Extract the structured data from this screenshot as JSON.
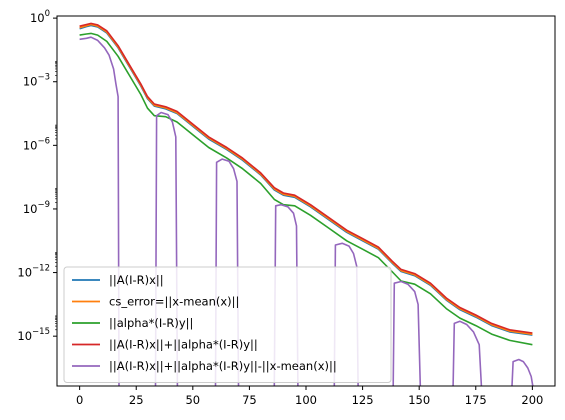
{
  "chart_data": {
    "type": "line",
    "title": "",
    "xlabel": "",
    "ylabel": "",
    "yscale": "log",
    "xlim": [
      -10,
      210
    ],
    "ylim": [
      -17.35,
      0.1
    ],
    "x_ticks": [
      0,
      25,
      50,
      75,
      100,
      125,
      150,
      175,
      200
    ],
    "y_ticks": [
      {
        "exp": 0,
        "label": "10",
        "sup": "0"
      },
      {
        "exp": -3,
        "label": "10",
        "sup": "−3"
      },
      {
        "exp": -6,
        "label": "10",
        "sup": "−6"
      },
      {
        "exp": -9,
        "label": "10",
        "sup": "−9"
      },
      {
        "exp": -12,
        "label": "10",
        "sup": "−12"
      },
      {
        "exp": -15,
        "label": "10",
        "sup": "−15"
      }
    ],
    "legend_position": "lower left",
    "grid": false,
    "colors": {
      "blue": "#1f77b4",
      "orange": "#ff7f0e",
      "green": "#2ca02c",
      "red": "#d62728",
      "purple": "#9467bd"
    },
    "series": [
      {
        "name": "||A(I-R)x||",
        "color": "#1f77b4",
        "points": [
          [
            0,
            -0.5
          ],
          [
            3,
            -0.4
          ],
          [
            5,
            -0.35
          ],
          [
            8,
            -0.42
          ],
          [
            12,
            -0.7
          ],
          [
            17,
            -1.4
          ],
          [
            22,
            -2.3
          ],
          [
            27,
            -3.2
          ],
          [
            30,
            -3.8
          ],
          [
            33,
            -4.15
          ],
          [
            38,
            -4.28
          ],
          [
            43,
            -4.5
          ],
          [
            50,
            -5.1
          ],
          [
            57,
            -5.7
          ],
          [
            65,
            -6.2
          ],
          [
            72,
            -6.7
          ],
          [
            80,
            -7.4
          ],
          [
            86,
            -8.1
          ],
          [
            90,
            -8.35
          ],
          [
            95,
            -8.45
          ],
          [
            102,
            -8.9
          ],
          [
            110,
            -9.5
          ],
          [
            118,
            -10.1
          ],
          [
            125,
            -10.5
          ],
          [
            132,
            -10.9
          ],
          [
            138,
            -11.55
          ],
          [
            142,
            -11.95
          ],
          [
            148,
            -12.15
          ],
          [
            155,
            -12.6
          ],
          [
            162,
            -13.3
          ],
          [
            168,
            -13.75
          ],
          [
            175,
            -14.1
          ],
          [
            182,
            -14.5
          ],
          [
            190,
            -14.8
          ],
          [
            200,
            -14.95
          ]
        ]
      },
      {
        "name": "cs_error=||x-mean(x)||",
        "color": "#ff7f0e",
        "points": [
          [
            0,
            -0.45
          ],
          [
            3,
            -0.36
          ],
          [
            5,
            -0.3
          ],
          [
            8,
            -0.38
          ],
          [
            12,
            -0.66
          ],
          [
            17,
            -1.36
          ],
          [
            22,
            -2.26
          ],
          [
            27,
            -3.16
          ],
          [
            30,
            -3.76
          ],
          [
            33,
            -4.11
          ],
          [
            38,
            -4.24
          ],
          [
            43,
            -4.46
          ],
          [
            50,
            -5.06
          ],
          [
            57,
            -5.66
          ],
          [
            65,
            -6.16
          ],
          [
            72,
            -6.66
          ],
          [
            80,
            -7.36
          ],
          [
            86,
            -8.06
          ],
          [
            90,
            -8.31
          ],
          [
            95,
            -8.41
          ],
          [
            102,
            -8.86
          ],
          [
            110,
            -9.46
          ],
          [
            118,
            -10.06
          ],
          [
            125,
            -10.46
          ],
          [
            132,
            -10.86
          ],
          [
            138,
            -11.51
          ],
          [
            142,
            -11.91
          ],
          [
            148,
            -12.11
          ],
          [
            155,
            -12.56
          ],
          [
            162,
            -13.26
          ],
          [
            168,
            -13.71
          ],
          [
            175,
            -14.06
          ],
          [
            182,
            -14.46
          ],
          [
            190,
            -14.76
          ],
          [
            200,
            -14.91
          ]
        ]
      },
      {
        "name": "||alpha*(I-R)y||",
        "color": "#2ca02c",
        "points": [
          [
            0,
            -0.8
          ],
          [
            3,
            -0.75
          ],
          [
            5,
            -0.72
          ],
          [
            8,
            -0.8
          ],
          [
            12,
            -1.1
          ],
          [
            17,
            -1.8
          ],
          [
            22,
            -2.7
          ],
          [
            27,
            -3.6
          ],
          [
            30,
            -4.25
          ],
          [
            33,
            -4.6
          ],
          [
            38,
            -4.65
          ],
          [
            43,
            -4.9
          ],
          [
            50,
            -5.5
          ],
          [
            57,
            -6.1
          ],
          [
            65,
            -6.6
          ],
          [
            72,
            -7.1
          ],
          [
            80,
            -7.8
          ],
          [
            86,
            -8.55
          ],
          [
            90,
            -8.8
          ],
          [
            95,
            -8.85
          ],
          [
            102,
            -9.3
          ],
          [
            110,
            -9.9
          ],
          [
            118,
            -10.5
          ],
          [
            125,
            -10.9
          ],
          [
            132,
            -11.3
          ],
          [
            138,
            -11.95
          ],
          [
            142,
            -12.4
          ],
          [
            148,
            -12.55
          ],
          [
            155,
            -13.0
          ],
          [
            162,
            -13.7
          ],
          [
            168,
            -14.15
          ],
          [
            175,
            -14.5
          ],
          [
            182,
            -14.9
          ],
          [
            190,
            -15.2
          ],
          [
            200,
            -15.4
          ]
        ]
      },
      {
        "name": "||A(I-R)x||+||alpha*(I-R)y||",
        "color": "#d62728",
        "points": [
          [
            0,
            -0.38
          ],
          [
            3,
            -0.3
          ],
          [
            5,
            -0.25
          ],
          [
            8,
            -0.32
          ],
          [
            12,
            -0.6
          ],
          [
            17,
            -1.3
          ],
          [
            22,
            -2.2
          ],
          [
            27,
            -3.1
          ],
          [
            30,
            -3.7
          ],
          [
            33,
            -4.05
          ],
          [
            38,
            -4.18
          ],
          [
            43,
            -4.4
          ],
          [
            50,
            -5.0
          ],
          [
            57,
            -5.6
          ],
          [
            65,
            -6.1
          ],
          [
            72,
            -6.6
          ],
          [
            80,
            -7.3
          ],
          [
            86,
            -8.0
          ],
          [
            90,
            -8.25
          ],
          [
            95,
            -8.35
          ],
          [
            102,
            -8.8
          ],
          [
            110,
            -9.4
          ],
          [
            118,
            -10.0
          ],
          [
            125,
            -10.4
          ],
          [
            132,
            -10.8
          ],
          [
            138,
            -11.45
          ],
          [
            142,
            -11.85
          ],
          [
            148,
            -12.05
          ],
          [
            155,
            -12.5
          ],
          [
            162,
            -13.2
          ],
          [
            168,
            -13.65
          ],
          [
            175,
            -14.0
          ],
          [
            182,
            -14.4
          ],
          [
            190,
            -14.7
          ],
          [
            200,
            -14.85
          ]
        ]
      },
      {
        "name": "||A(I-R)x||+||alpha*(I-R)y||-||x-mean(x)||",
        "color": "#9467bd",
        "segments": [
          [
            [
              0,
              -1.0
            ],
            [
              3,
              -0.95
            ],
            [
              5,
              -0.9
            ],
            [
              8,
              -1.05
            ],
            [
              11,
              -1.4
            ],
            [
              13,
              -1.75
            ],
            [
              15,
              -2.4
            ],
            [
              16,
              -3.1
            ],
            [
              17,
              -3.7
            ],
            [
              17.4,
              -17.35
            ]
          ],
          [
            [
              33.5,
              -17.35
            ],
            [
              34,
              -4.6
            ],
            [
              36,
              -4.45
            ],
            [
              39,
              -4.55
            ],
            [
              41,
              -4.9
            ],
            [
              42.5,
              -5.6
            ],
            [
              43.2,
              -17.35
            ]
          ],
          [
            [
              60,
              -17.35
            ],
            [
              60.5,
              -6.8
            ],
            [
              63,
              -6.65
            ],
            [
              66,
              -6.75
            ],
            [
              68,
              -7.1
            ],
            [
              69.5,
              -7.7
            ],
            [
              70.2,
              -17.35
            ]
          ],
          [
            [
              86,
              -17.35
            ],
            [
              86.6,
              -8.85
            ],
            [
              89,
              -8.8
            ],
            [
              92,
              -8.9
            ],
            [
              94.5,
              -9.2
            ],
            [
              95.8,
              -9.8
            ],
            [
              96.4,
              -17.35
            ]
          ],
          [
            [
              112.5,
              -17.35
            ],
            [
              113,
              -10.7
            ],
            [
              116,
              -10.62
            ],
            [
              119,
              -10.75
            ],
            [
              121,
              -11.1
            ],
            [
              122.4,
              -11.7
            ],
            [
              123,
              -17.35
            ]
          ],
          [
            [
              138.5,
              -17.35
            ],
            [
              139,
              -12.5
            ],
            [
              142,
              -12.42
            ],
            [
              145,
              -12.55
            ],
            [
              148,
              -12.9
            ],
            [
              149.5,
              -13.5
            ],
            [
              150.5,
              -17.35
            ]
          ],
          [
            [
              165,
              -17.35
            ],
            [
              165.5,
              -14.4
            ],
            [
              168,
              -14.3
            ],
            [
              171,
              -14.45
            ],
            [
              174,
              -14.8
            ],
            [
              176.5,
              -15.4
            ],
            [
              177.5,
              -17.35
            ]
          ],
          [
            [
              191,
              -17.35
            ],
            [
              191.5,
              -16.2
            ],
            [
              194,
              -16.1
            ],
            [
              196,
              -16.2
            ],
            [
              198,
              -16.5
            ],
            [
              199.5,
              -16.9
            ],
            [
              200.2,
              -17.35
            ]
          ]
        ]
      }
    ]
  }
}
